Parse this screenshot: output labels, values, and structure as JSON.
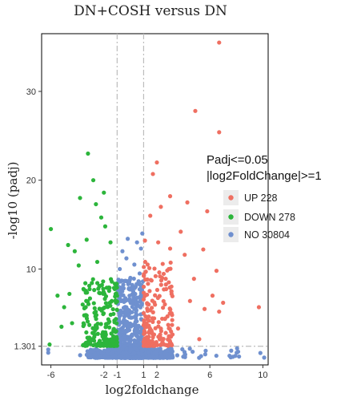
{
  "chart_data": {
    "type": "scatter",
    "title": "DN+COSH versus DN",
    "xlabel": "log2foldchange",
    "ylabel": "-log10 (padj)",
    "xlim": [
      -6.7,
      10.4
    ],
    "ylim": [
      -0.8,
      36.5
    ],
    "x_ticks": [
      -6,
      -2,
      -1,
      1,
      2,
      6,
      10
    ],
    "x_tick_labels": [
      "-6",
      "-2",
      "-1",
      "1",
      "2",
      "6",
      "10"
    ],
    "y_ticks": [
      1.301,
      10,
      20,
      30
    ],
    "y_tick_labels": [
      "1.301",
      "10",
      "20",
      "30"
    ],
    "thresholds": {
      "x": [
        -1,
        1
      ],
      "y": 1.301,
      "style": "dash-dot",
      "color": "#bdbdbd"
    },
    "grid": false,
    "legend": {
      "position": "right",
      "title_lines": [
        "Padj<=0.05",
        "|log2FoldChange|>=1"
      ],
      "entries": [
        {
          "key": "UP",
          "label": "UP 228",
          "color": "#ef6f61"
        },
        {
          "key": "DOWN",
          "label": "DOWN 278",
          "color": "#2cb53b"
        },
        {
          "key": "NO",
          "label": "NO 30804",
          "color": "#6f90cf"
        }
      ]
    },
    "series": [
      {
        "name": "UP 228",
        "color": "#ef6f61",
        "points": [
          [
            6.7,
            35.5
          ],
          [
            6.7,
            25.4
          ],
          [
            4.9,
            27.8
          ],
          [
            9.7,
            5.7
          ],
          [
            2.0,
            22.0
          ],
          [
            1.7,
            20.7
          ],
          [
            3.0,
            18.2
          ],
          [
            4.3,
            17.5
          ],
          [
            2.3,
            17.0
          ],
          [
            1.5,
            16.0
          ],
          [
            5.8,
            16.5
          ],
          [
            3.8,
            14.2
          ],
          [
            1.1,
            13.2
          ],
          [
            2.1,
            13.0
          ],
          [
            3.0,
            12.3
          ],
          [
            4.1,
            11.6
          ],
          [
            5.5,
            12.2
          ],
          [
            6.5,
            9.8
          ],
          [
            6.7,
            5.2
          ],
          [
            5.6,
            5.5
          ],
          [
            4.5,
            6.4
          ],
          [
            3.1,
            7.5
          ],
          [
            2.4,
            9.0
          ],
          [
            1.3,
            10.5
          ],
          [
            1.6,
            8.7
          ],
          [
            2.9,
            10.0
          ],
          [
            4.8,
            8.9
          ],
          [
            6.2,
            7.0
          ],
          [
            7.0,
            6.2
          ],
          [
            3.6,
            3.3
          ],
          [
            2.4,
            4.4
          ],
          [
            5.2,
            2.1
          ]
        ],
        "cluster": {
          "x": [
            1.0,
            3.2
          ],
          "y": [
            1.35,
            11.0
          ],
          "count": 180
        }
      },
      {
        "name": "DOWN 278",
        "color": "#2cb53b",
        "points": [
          [
            -3.2,
            23.0
          ],
          [
            -2.8,
            20.0
          ],
          [
            -2.0,
            18.6
          ],
          [
            -3.8,
            18.0
          ],
          [
            -2.6,
            17.3
          ],
          [
            -6.0,
            14.5
          ],
          [
            -2.2,
            15.8
          ],
          [
            -1.9,
            14.8
          ],
          [
            -4.7,
            12.7
          ],
          [
            -4.2,
            12.0
          ],
          [
            -3.3,
            13.3
          ],
          [
            -1.5,
            13.0
          ],
          [
            -2.5,
            10.8
          ],
          [
            -3.9,
            10.4
          ],
          [
            -5.5,
            7.0
          ],
          [
            -5.0,
            5.7
          ],
          [
            -4.6,
            7.2
          ],
          [
            -3.6,
            6.0
          ],
          [
            -2.6,
            4.8
          ],
          [
            -1.4,
            6.4
          ],
          [
            -6.1,
            1.5
          ],
          [
            -5.2,
            3.5
          ],
          [
            -4.4,
            3.9
          ],
          [
            -3.4,
            8.4
          ]
        ],
        "cluster": {
          "x": [
            -3.6,
            -1.0
          ],
          "y": [
            1.35,
            9.0
          ],
          "count": 220
        }
      },
      {
        "name": "NO 30804",
        "color": "#6f90cf",
        "points": [
          [
            -0.6,
            12.0
          ],
          [
            0.5,
            13.0
          ],
          [
            0.3,
            10.5
          ],
          [
            -0.3,
            11.2
          ],
          [
            0.7,
            9.5
          ],
          [
            -0.8,
            10.0
          ],
          [
            0.0,
            9.0
          ],
          [
            0.8,
            12.3
          ],
          [
            -0.2,
            13.4
          ],
          [
            0.9,
            14.0
          ],
          [
            -0.9,
            8.8
          ],
          [
            0.4,
            8.0
          ]
        ],
        "cluster": {
          "x": [
            -0.95,
            0.95
          ],
          "y": [
            0.0,
            9.0
          ],
          "count": 500
        },
        "baseline": {
          "x": [
            -6.2,
            10.1
          ],
          "y": [
            0.0,
            1.3
          ],
          "count": 900
        }
      }
    ]
  }
}
